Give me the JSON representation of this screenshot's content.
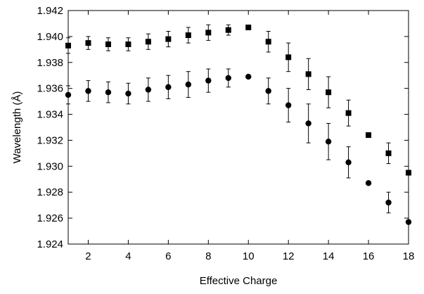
{
  "chart_data": {
    "type": "scatter",
    "xlabel": "Effective Charge",
    "ylabel": "Wavelength (Å)",
    "xlim": [
      1,
      18
    ],
    "ylim": [
      1.924,
      1.942
    ],
    "xticks": [
      2,
      4,
      6,
      8,
      10,
      12,
      14,
      16,
      18
    ],
    "yticks": [
      1.924,
      1.926,
      1.928,
      1.93,
      1.932,
      1.934,
      1.936,
      1.938,
      1.94,
      1.942
    ],
    "ytick_labels": [
      "1.924",
      "1.926",
      "1.928",
      "1.930",
      "1.932",
      "1.934",
      "1.936",
      "1.938",
      "1.940",
      "1.942"
    ],
    "grid": false,
    "series": [
      {
        "marker": "square",
        "color": "#000000",
        "points": [
          {
            "x": 1,
            "y": 1.9393,
            "err": 0.0006
          },
          {
            "x": 2,
            "y": 1.9395,
            "err": 0.0005
          },
          {
            "x": 3,
            "y": 1.9394,
            "err": 0.0005
          },
          {
            "x": 4,
            "y": 1.9394,
            "err": 0.0005
          },
          {
            "x": 5,
            "y": 1.9396,
            "err": 0.0006
          },
          {
            "x": 6,
            "y": 1.9398,
            "err": 0.0006
          },
          {
            "x": 7,
            "y": 1.9401,
            "err": 0.0006
          },
          {
            "x": 8,
            "y": 1.9403,
            "err": 0.0006
          },
          {
            "x": 9,
            "y": 1.9405,
            "err": 0.0004
          },
          {
            "x": 10,
            "y": 1.9407,
            "err": 0
          },
          {
            "x": 11,
            "y": 1.9396,
            "err": 0.0008
          },
          {
            "x": 12,
            "y": 1.9384,
            "err": 0.0011
          },
          {
            "x": 13,
            "y": 1.9371,
            "err": 0.0012
          },
          {
            "x": 14,
            "y": 1.9357,
            "err": 0.0012
          },
          {
            "x": 15,
            "y": 1.9341,
            "err": 0.001
          },
          {
            "x": 16,
            "y": 1.9324,
            "err": 0
          },
          {
            "x": 17,
            "y": 1.931,
            "err": 0.0008
          },
          {
            "x": 18,
            "y": 1.9295,
            "err": 0
          }
        ]
      },
      {
        "marker": "circle",
        "color": "#000000",
        "points": [
          {
            "x": 1,
            "y": 1.9355,
            "err": 0.0007
          },
          {
            "x": 2,
            "y": 1.9358,
            "err": 0.0008
          },
          {
            "x": 3,
            "y": 1.9357,
            "err": 0.0008
          },
          {
            "x": 4,
            "y": 1.9356,
            "err": 0.0008
          },
          {
            "x": 5,
            "y": 1.9359,
            "err": 0.0009
          },
          {
            "x": 6,
            "y": 1.9361,
            "err": 0.0009
          },
          {
            "x": 7,
            "y": 1.9363,
            "err": 0.001
          },
          {
            "x": 8,
            "y": 1.9366,
            "err": 0.0009
          },
          {
            "x": 9,
            "y": 1.9368,
            "err": 0.0007
          },
          {
            "x": 10,
            "y": 1.9369,
            "err": 0
          },
          {
            "x": 11,
            "y": 1.9358,
            "err": 0.001
          },
          {
            "x": 12,
            "y": 1.9347,
            "err": 0.0013
          },
          {
            "x": 13,
            "y": 1.9333,
            "err": 0.0015
          },
          {
            "x": 14,
            "y": 1.9319,
            "err": 0.0014
          },
          {
            "x": 15,
            "y": 1.9303,
            "err": 0.0012
          },
          {
            "x": 16,
            "y": 1.9287,
            "err": 0
          },
          {
            "x": 17,
            "y": 1.9272,
            "err": 0.0008
          },
          {
            "x": 18,
            "y": 1.9257,
            "err": 0
          }
        ]
      }
    ]
  }
}
